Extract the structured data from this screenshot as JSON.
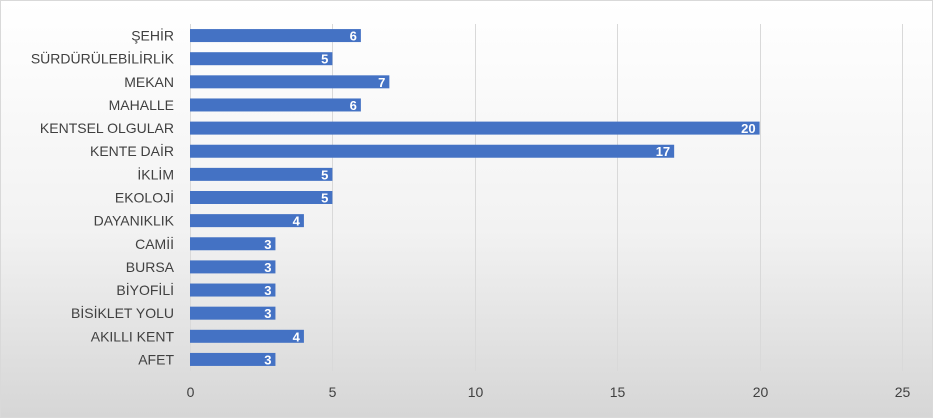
{
  "chart_data": {
    "type": "bar",
    "orientation": "horizontal",
    "title": "",
    "xlabel": "",
    "ylabel": "",
    "categories": [
      "ŞEHİR",
      "SÜRDÜRÜLEBİLİRLİK",
      "MEKAN",
      "MAHALLE",
      "KENTSEL OLGULAR",
      "KENTE DAİR",
      "İKLİM",
      "EKOLOJİ",
      "DAYANIKLIK",
      "CAMİİ",
      "BURSA",
      "BİYOFİLİ",
      "BİSİKLET YOLU",
      "AKILLI KENT",
      "AFET"
    ],
    "values": [
      6,
      5,
      7,
      6,
      20,
      17,
      5,
      5,
      4,
      3,
      3,
      3,
      3,
      4,
      3
    ],
    "xlim": [
      0,
      25
    ],
    "x_ticks": [
      "0",
      "5",
      "10",
      "15",
      "20",
      "25"
    ],
    "grid": "vertical",
    "legend": "none",
    "data_labels": true
  },
  "colors": {
    "bar": "#4472c4",
    "label_text": "#404040",
    "value_text": "#ffffff",
    "grid": "#d9d9d9"
  }
}
